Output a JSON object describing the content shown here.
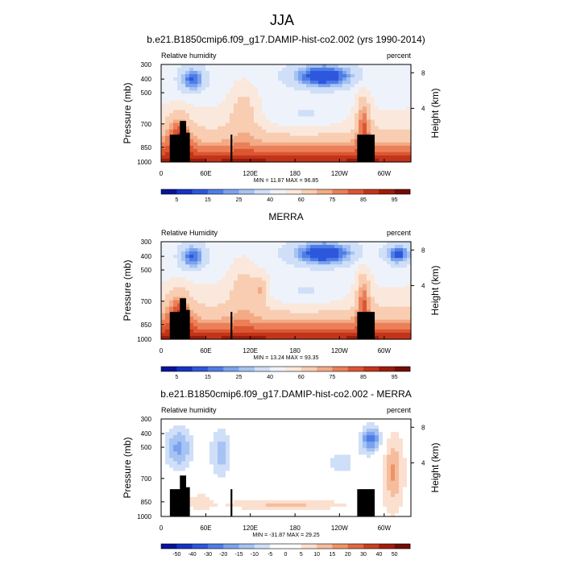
{
  "figure": {
    "title": "JJA"
  },
  "chart_data": [
    {
      "type": "heatmap",
      "title": "b.e21.B1850cmip6.f09_g17.DAMIP-hist-co2.002 (yrs 1990-2014)",
      "left_label": "Relative humidity",
      "right_label": "percent",
      "ylabel": "Pressure (mb)",
      "y2label": "Height (km)",
      "x_ticks": [
        "0",
        "60E",
        "120E",
        "180",
        "120W",
        "60W"
      ],
      "y_ticks": [
        "300",
        "400",
        "500",
        "700",
        "850",
        "1000"
      ],
      "y2_ticks": [
        "8",
        "4"
      ],
      "stats": "MIN = 11.87  MAX = 96.85",
      "colorbar_levels": [
        "5",
        "15",
        "25",
        "40",
        "60",
        "75",
        "85",
        "95"
      ],
      "variant": "model"
    },
    {
      "type": "heatmap",
      "title": "MERRA",
      "left_label": "Relative Humidity",
      "right_label": "percent",
      "ylabel": "Pressure (mb)",
      "y2label": "Height (km)",
      "x_ticks": [
        "0",
        "60E",
        "120E",
        "180",
        "120W",
        "60W"
      ],
      "y_ticks": [
        "300",
        "400",
        "500",
        "700",
        "850",
        "1000"
      ],
      "y2_ticks": [
        "8",
        "4"
      ],
      "stats": "MIN = 13.24  MAX = 93.35",
      "colorbar_levels": [
        "5",
        "15",
        "25",
        "40",
        "60",
        "75",
        "85",
        "95"
      ],
      "variant": "obs"
    },
    {
      "type": "heatmap",
      "title": "b.e21.B1850cmip6.f09_g17.DAMIP-hist-co2.002 - MERRA",
      "left_label": "Relative humidity",
      "right_label": "percent",
      "ylabel": "Pressure (mb)",
      "y2label": "Height (km)",
      "x_ticks": [
        "0",
        "60E",
        "120E",
        "180",
        "120W",
        "60W"
      ],
      "y_ticks": [
        "300",
        "400",
        "500",
        "700",
        "850",
        "1000"
      ],
      "y2_ticks": [
        "8",
        "4"
      ],
      "stats": "MIN = -31.87  MAX = 29.25",
      "colorbar_levels": [
        "-50",
        "-40",
        "-30",
        "-20",
        "-15",
        "-10",
        "-5",
        "0",
        "5",
        "10",
        "15",
        "20",
        "30",
        "40",
        "50"
      ],
      "variant": "diff"
    }
  ],
  "colors": {
    "rh_scale": [
      "#06139c",
      "#1533c4",
      "#2d57dc",
      "#4f7de6",
      "#7aa2ee",
      "#a6c3f3",
      "#cfdff8",
      "#eef3fb",
      "#fbe8dc",
      "#f8cdb1",
      "#f3aa85",
      "#eb7f58",
      "#db5631",
      "#c2341a",
      "#9c1c0b",
      "#730c05"
    ],
    "diff_scale": [
      "#06139c",
      "#1533c4",
      "#2d57dc",
      "#4f7de6",
      "#7aa2ee",
      "#a6c3f3",
      "#cfdff8",
      "#ffffff",
      "#ffffff",
      "#fbe0d0",
      "#f6bd9c",
      "#ee9467",
      "#e0683f",
      "#c8401f",
      "#a11e0c",
      "#730c05"
    ],
    "land_mask": "#000000"
  }
}
